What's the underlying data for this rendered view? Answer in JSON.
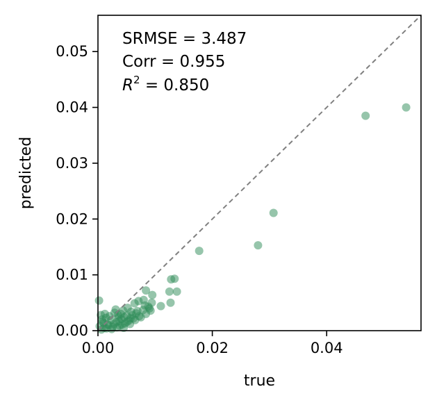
{
  "chart_data": {
    "type": "scatter",
    "xlabel": "true",
    "ylabel": "predicted",
    "xlim": [
      0.0,
      0.0565
    ],
    "ylim": [
      0.0,
      0.0565
    ],
    "xticks": [
      0.0,
      0.02,
      0.04
    ],
    "xtick_labels": [
      "0.00",
      "0.02",
      "0.04"
    ],
    "yticks": [
      0.0,
      0.01,
      0.02,
      0.03,
      0.04,
      0.05
    ],
    "ytick_labels": [
      "0.00",
      "0.01",
      "0.02",
      "0.03",
      "0.04",
      "0.05"
    ],
    "grid": false,
    "point_color": "#2e8b57",
    "reference_line": {
      "type": "identity",
      "color": "#808080",
      "style": "dashed"
    },
    "annotations": {
      "srmse": "SRMSE = 3.487",
      "corr": "Corr = 0.955",
      "r2_symbol": "R",
      "r2_exponent": "2",
      "r2_value": " = 0.850"
    },
    "points": [
      {
        "x": 0.0539,
        "y": 0.04
      },
      {
        "x": 0.0468,
        "y": 0.0385
      },
      {
        "x": 0.0307,
        "y": 0.0211
      },
      {
        "x": 0.028,
        "y": 0.0153
      },
      {
        "x": 0.0177,
        "y": 0.0143
      },
      {
        "x": 0.0134,
        "y": 0.0093
      },
      {
        "x": 0.0128,
        "y": 0.0092
      },
      {
        "x": 0.0125,
        "y": 0.007
      },
      {
        "x": 0.0138,
        "y": 0.007
      },
      {
        "x": 0.0127,
        "y": 0.005
      },
      {
        "x": 0.011,
        "y": 0.0044
      },
      {
        "x": 0.0095,
        "y": 0.0064
      },
      {
        "x": 0.0094,
        "y": 0.005
      },
      {
        "x": 0.0084,
        "y": 0.0072
      },
      {
        "x": 0.008,
        "y": 0.0055
      },
      {
        "x": 0.0071,
        "y": 0.0053
      },
      {
        "x": 0.0064,
        "y": 0.0049
      },
      {
        "x": 0.0092,
        "y": 0.0036
      },
      {
        "x": 0.0088,
        "y": 0.0043
      },
      {
        "x": 0.0084,
        "y": 0.003
      },
      {
        "x": 0.0079,
        "y": 0.0037
      },
      {
        "x": 0.0072,
        "y": 0.0026
      },
      {
        "x": 0.0067,
        "y": 0.0031
      },
      {
        "x": 0.0062,
        "y": 0.0022
      },
      {
        "x": 0.0058,
        "y": 0.0034
      },
      {
        "x": 0.0054,
        "y": 0.0018
      },
      {
        "x": 0.005,
        "y": 0.0027
      },
      {
        "x": 0.0047,
        "y": 0.0013
      },
      {
        "x": 0.0044,
        "y": 0.0036
      },
      {
        "x": 0.0041,
        "y": 0.0021
      },
      {
        "x": 0.0038,
        "y": 0.0009
      },
      {
        "x": 0.0035,
        "y": 0.0028
      },
      {
        "x": 0.0032,
        "y": 0.0015
      },
      {
        "x": 0.0029,
        "y": 0.0032
      },
      {
        "x": 0.0026,
        "y": 0.0007
      },
      {
        "x": 0.0023,
        "y": 0.0019
      },
      {
        "x": 0.002,
        "y": 0.0026
      },
      {
        "x": 0.0017,
        "y": 0.0011
      },
      {
        "x": 0.0014,
        "y": 0.0023
      },
      {
        "x": 0.0011,
        "y": 0.0005
      },
      {
        "x": 0.0008,
        "y": 0.0016
      },
      {
        "x": 0.0005,
        "y": 0.0028
      },
      {
        "x": 0.0003,
        "y": 0.0008
      },
      {
        "x": 0.0002,
        "y": 0.0054
      },
      {
        "x": 0.0006,
        "y": 0.0002
      },
      {
        "x": 0.001,
        "y": 0.0014
      },
      {
        "x": 0.0015,
        "y": 0.0004
      },
      {
        "x": 0.0019,
        "y": 0.001
      },
      {
        "x": 0.0024,
        "y": 0.0003
      },
      {
        "x": 0.0028,
        "y": 0.0012
      },
      {
        "x": 0.0033,
        "y": 0.0006
      },
      {
        "x": 0.0037,
        "y": 0.0017
      },
      {
        "x": 0.0042,
        "y": 0.0011
      },
      {
        "x": 0.0046,
        "y": 0.0024
      },
      {
        "x": 0.0051,
        "y": 0.0016
      },
      {
        "x": 0.0056,
        "y": 0.0012
      },
      {
        "x": 0.006,
        "y": 0.0028
      },
      {
        "x": 0.0065,
        "y": 0.0019
      },
      {
        "x": 0.0069,
        "y": 0.0035
      },
      {
        "x": 0.0075,
        "y": 0.0024
      },
      {
        "x": 0.0082,
        "y": 0.0045
      },
      {
        "x": 0.009,
        "y": 0.004
      },
      {
        "x": 0.0031,
        "y": 0.0038
      },
      {
        "x": 0.004,
        "y": 0.003
      },
      {
        "x": 0.0052,
        "y": 0.0041
      },
      {
        "x": 0.0057,
        "y": 0.0022
      },
      {
        "x": 0.0012,
        "y": 0.003
      },
      {
        "x": 0.0007,
        "y": 0.002
      },
      {
        "x": 0.0045,
        "y": 0.0005
      },
      {
        "x": 0.0036,
        "y": 0.0024
      }
    ]
  }
}
